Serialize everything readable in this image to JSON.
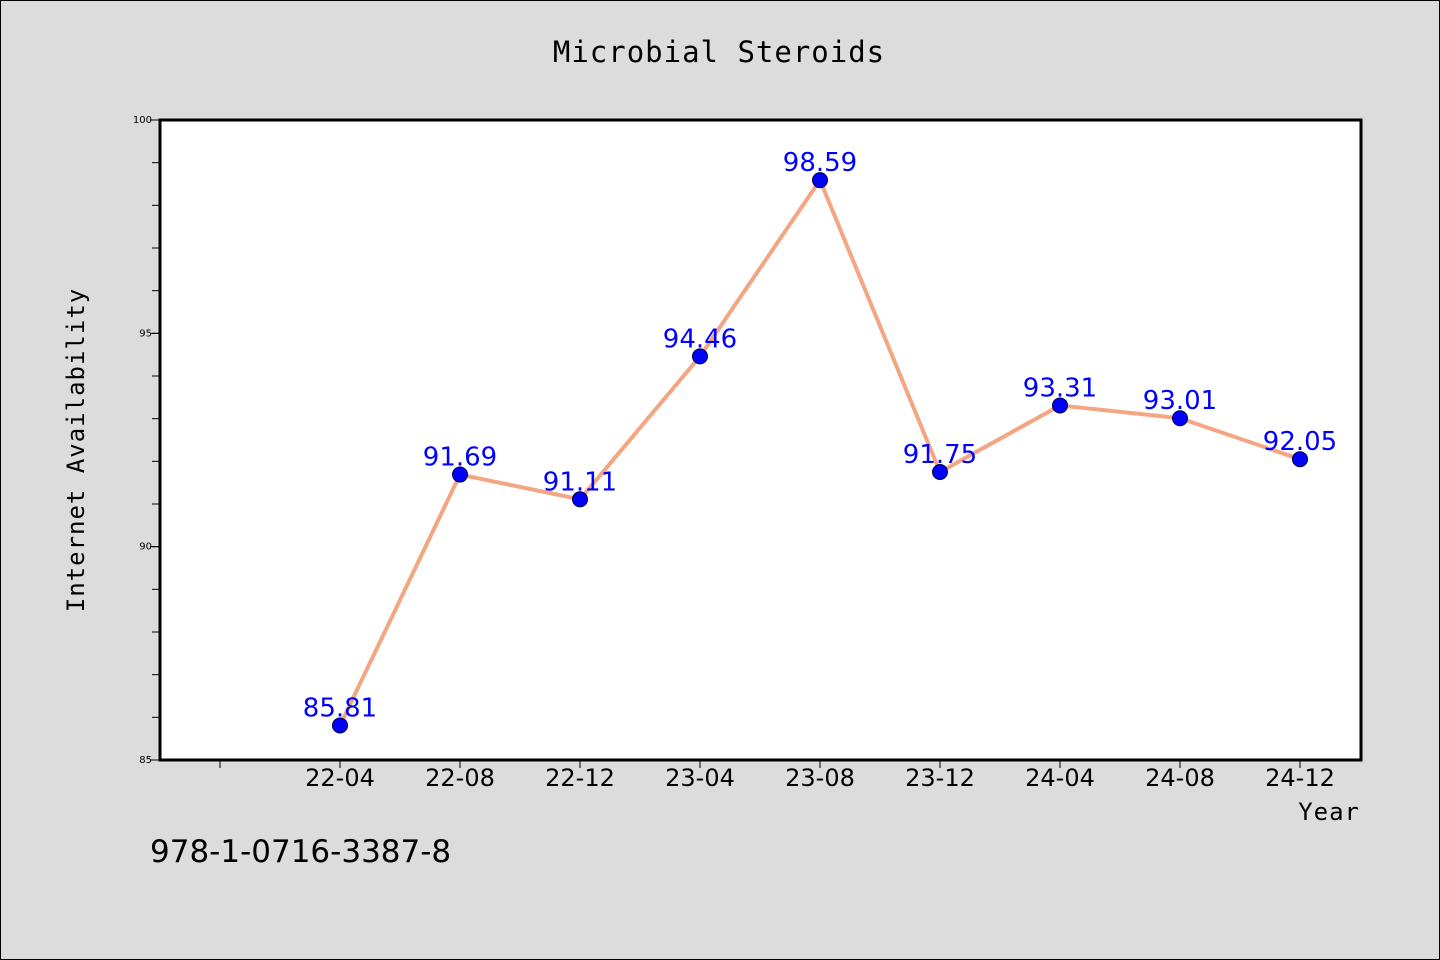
{
  "chart_data": {
    "type": "line",
    "title": "Microbial Steroids",
    "xlabel": "Year",
    "ylabel": "Internet Availability",
    "categories": [
      "22-04",
      "22-08",
      "22-12",
      "23-04",
      "23-08",
      "23-12",
      "24-04",
      "24-08",
      "24-12"
    ],
    "series": [
      {
        "values": [
          85.81,
          91.69,
          91.11,
          94.46,
          98.59,
          91.75,
          93.31,
          93.01,
          92.05
        ],
        "data_labels": [
          "85.81",
          "91.69",
          "91.11",
          "94.46",
          "98.59",
          "91.75",
          "93.31",
          "93.01",
          "92.05"
        ]
      }
    ],
    "ylim": [
      85,
      100
    ],
    "y_ticks": [
      "85",
      "90",
      "95",
      "100"
    ],
    "y_minor_step": 1,
    "grid": false,
    "colors": {
      "line": "#f4a582",
      "marker": "#0000ff",
      "label": "#0000ff",
      "plot_bg": "#ffffff",
      "page_bg": "#dcdcdc"
    }
  },
  "footer": {
    "isbn": "978-1-0716-3387-8"
  }
}
